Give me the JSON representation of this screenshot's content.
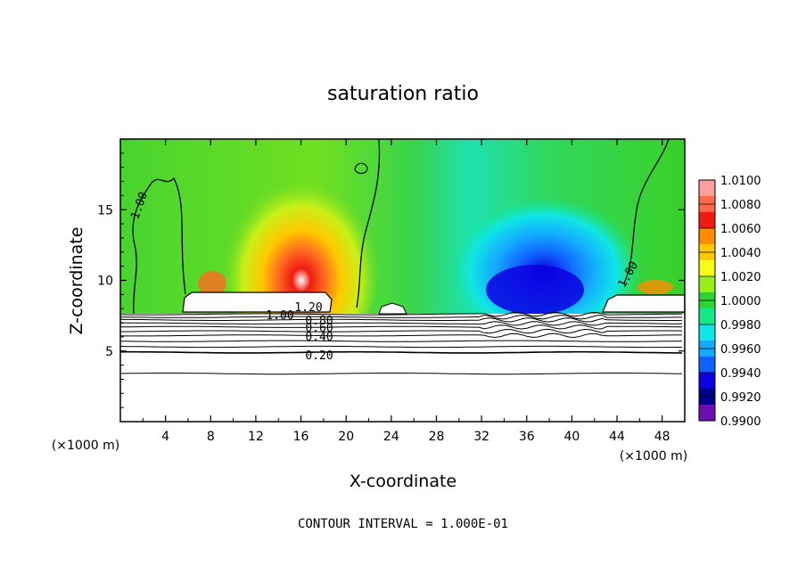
{
  "chart_data": {
    "type": "heatmap",
    "title": "saturation ratio",
    "xlabel": "X-coordinate",
    "ylabel": "Z-coordinate",
    "x_unit_left": "(×1000 m)",
    "x_unit_right": "(×1000 m)",
    "xlim": [
      0,
      50
    ],
    "ylim": [
      0,
      20
    ],
    "x_ticks": [
      4,
      8,
      12,
      16,
      20,
      24,
      28,
      32,
      36,
      40,
      44,
      48
    ],
    "y_ticks": [
      5,
      10,
      15
    ],
    "footer": "CONTOUR INTERVAL = 1.000E-01",
    "colorbar": {
      "levels": [
        "1.0100",
        "1.0080",
        "1.0060",
        "1.0040",
        "1.0020",
        "1.0000",
        "0.9980",
        "0.9960",
        "0.9940",
        "0.9920",
        "0.9900"
      ],
      "colors": [
        "#ff9e9e",
        "#ff6a4a",
        "#ee1c10",
        "#ff8c00",
        "#ffc800",
        "#f5ff14",
        "#9aee18",
        "#30d430",
        "#14e888",
        "#10e6e6",
        "#14aaff",
        "#1060ff",
        "#0a00e0",
        "#00008c",
        "#6a10b0"
      ]
    },
    "contour_labels": [
      {
        "text": "1.00",
        "x": 1.2,
        "z": 15.5
      },
      {
        "text": "1.00",
        "x": 44.5,
        "z": 10.3
      },
      {
        "text": "1.00",
        "x": 13.8,
        "z": 7.6
      },
      {
        "text": "1.20",
        "x": 16.5,
        "z": 8.1
      },
      {
        "text": "0.80",
        "x": 17.8,
        "z": 7.5
      },
      {
        "text": "0.60",
        "x": 17.8,
        "z": 6.9
      },
      {
        "text": "0.40",
        "x": 17.6,
        "z": 6.1
      },
      {
        "text": "0.20",
        "x": 17.6,
        "z": 4.7
      }
    ],
    "stable_layer_lines_z": [
      3.4,
      4.9,
      5.3,
      5.7,
      6.1,
      6.4,
      6.7,
      6.95,
      7.2,
      7.4,
      7.6
    ]
  }
}
